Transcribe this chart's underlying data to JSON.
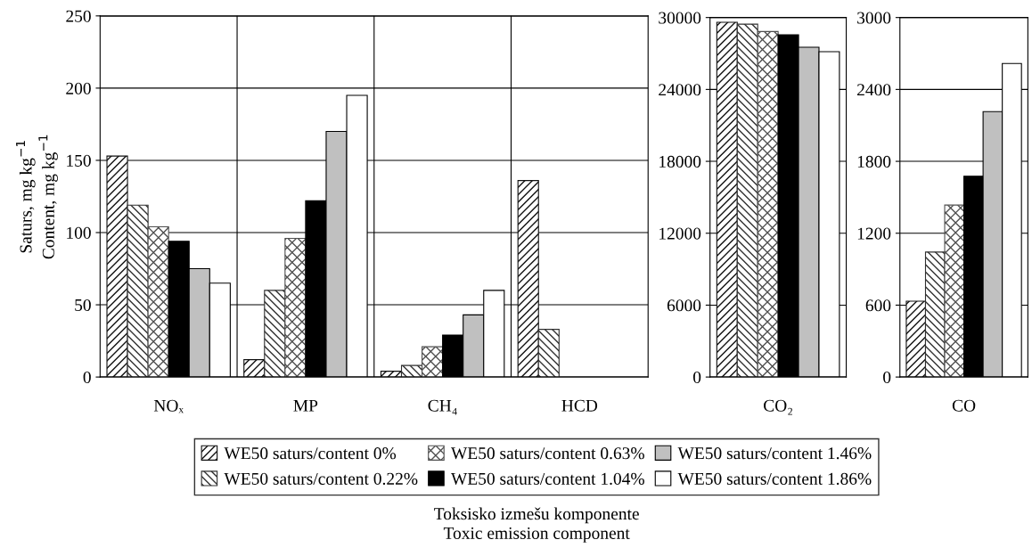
{
  "chart_data": [
    {
      "type": "bar",
      "ylabel": "Saturs, mg kg$^{−1}$\nContent, mg kg$^{−1}$",
      "xlabel": "Toksisko izmešu komponente\nToxic emission component",
      "categories": [
        "NOₓ",
        "MP",
        "CH₄",
        "HCD"
      ],
      "ylim": [
        0,
        250
      ],
      "yticks": [
        0,
        50,
        100,
        150,
        200,
        250
      ],
      "grid": true,
      "legend": "bottom",
      "series": [
        {
          "name": "WE50 saturs/content 0%",
          "color": "#101010",
          "values": [
            153,
            12,
            4,
            136
          ]
        },
        {
          "name": "WE50 saturs/content 0.22%",
          "color": "#303030",
          "values": [
            119,
            60,
            8,
            33
          ]
        },
        {
          "name": "WE50 saturs/content 0.63%",
          "color": "#505050",
          "values": [
            104,
            96,
            21,
            null
          ]
        },
        {
          "name": "WE50 saturs/content 1.04%",
          "color": "#000000",
          "values": [
            94,
            122,
            29,
            null
          ]
        },
        {
          "name": "WE50 saturs/content 1.46%",
          "color": "#c0c0c0",
          "values": [
            75,
            170,
            43,
            null
          ]
        },
        {
          "name": "WE50 saturs/content 1.86%",
          "color": "#ffffff",
          "values": [
            65,
            195,
            60,
            null
          ]
        }
      ]
    },
    {
      "type": "bar",
      "categories": [
        "CO₂"
      ],
      "ylim": [
        0,
        30000
      ],
      "yticks": [
        0,
        6000,
        12000,
        18000,
        24000,
        30000
      ],
      "grid": "y",
      "series": [
        {
          "color": "#101010",
          "values": [
            29600
          ]
        },
        {
          "color": "#303030",
          "values": [
            29450
          ]
        },
        {
          "color": "#505050",
          "values": [
            28830
          ]
        },
        {
          "color": "#000000",
          "values": [
            28560
          ]
        },
        {
          "color": "#c0c0c0",
          "values": [
            27520
          ]
        },
        {
          "color": "#ffffff",
          "values": [
            27150
          ]
        }
      ]
    },
    {
      "type": "bar",
      "categories": [
        "CO"
      ],
      "ylim": [
        0,
        3000
      ],
      "yticks": [
        0,
        600,
        1200,
        1800,
        2400,
        3000
      ],
      "grid": "y",
      "series": [
        {
          "color": "#101010",
          "values": [
            633
          ]
        },
        {
          "color": "#303030",
          "values": [
            1043
          ]
        },
        {
          "color": "#505050",
          "values": [
            1435
          ]
        },
        {
          "color": "#000000",
          "values": [
            1676
          ]
        },
        {
          "color": "#c0c0c0",
          "values": [
            2215
          ]
        },
        {
          "color": "#ffffff",
          "values": [
            2617
          ]
        }
      ]
    }
  ]
}
